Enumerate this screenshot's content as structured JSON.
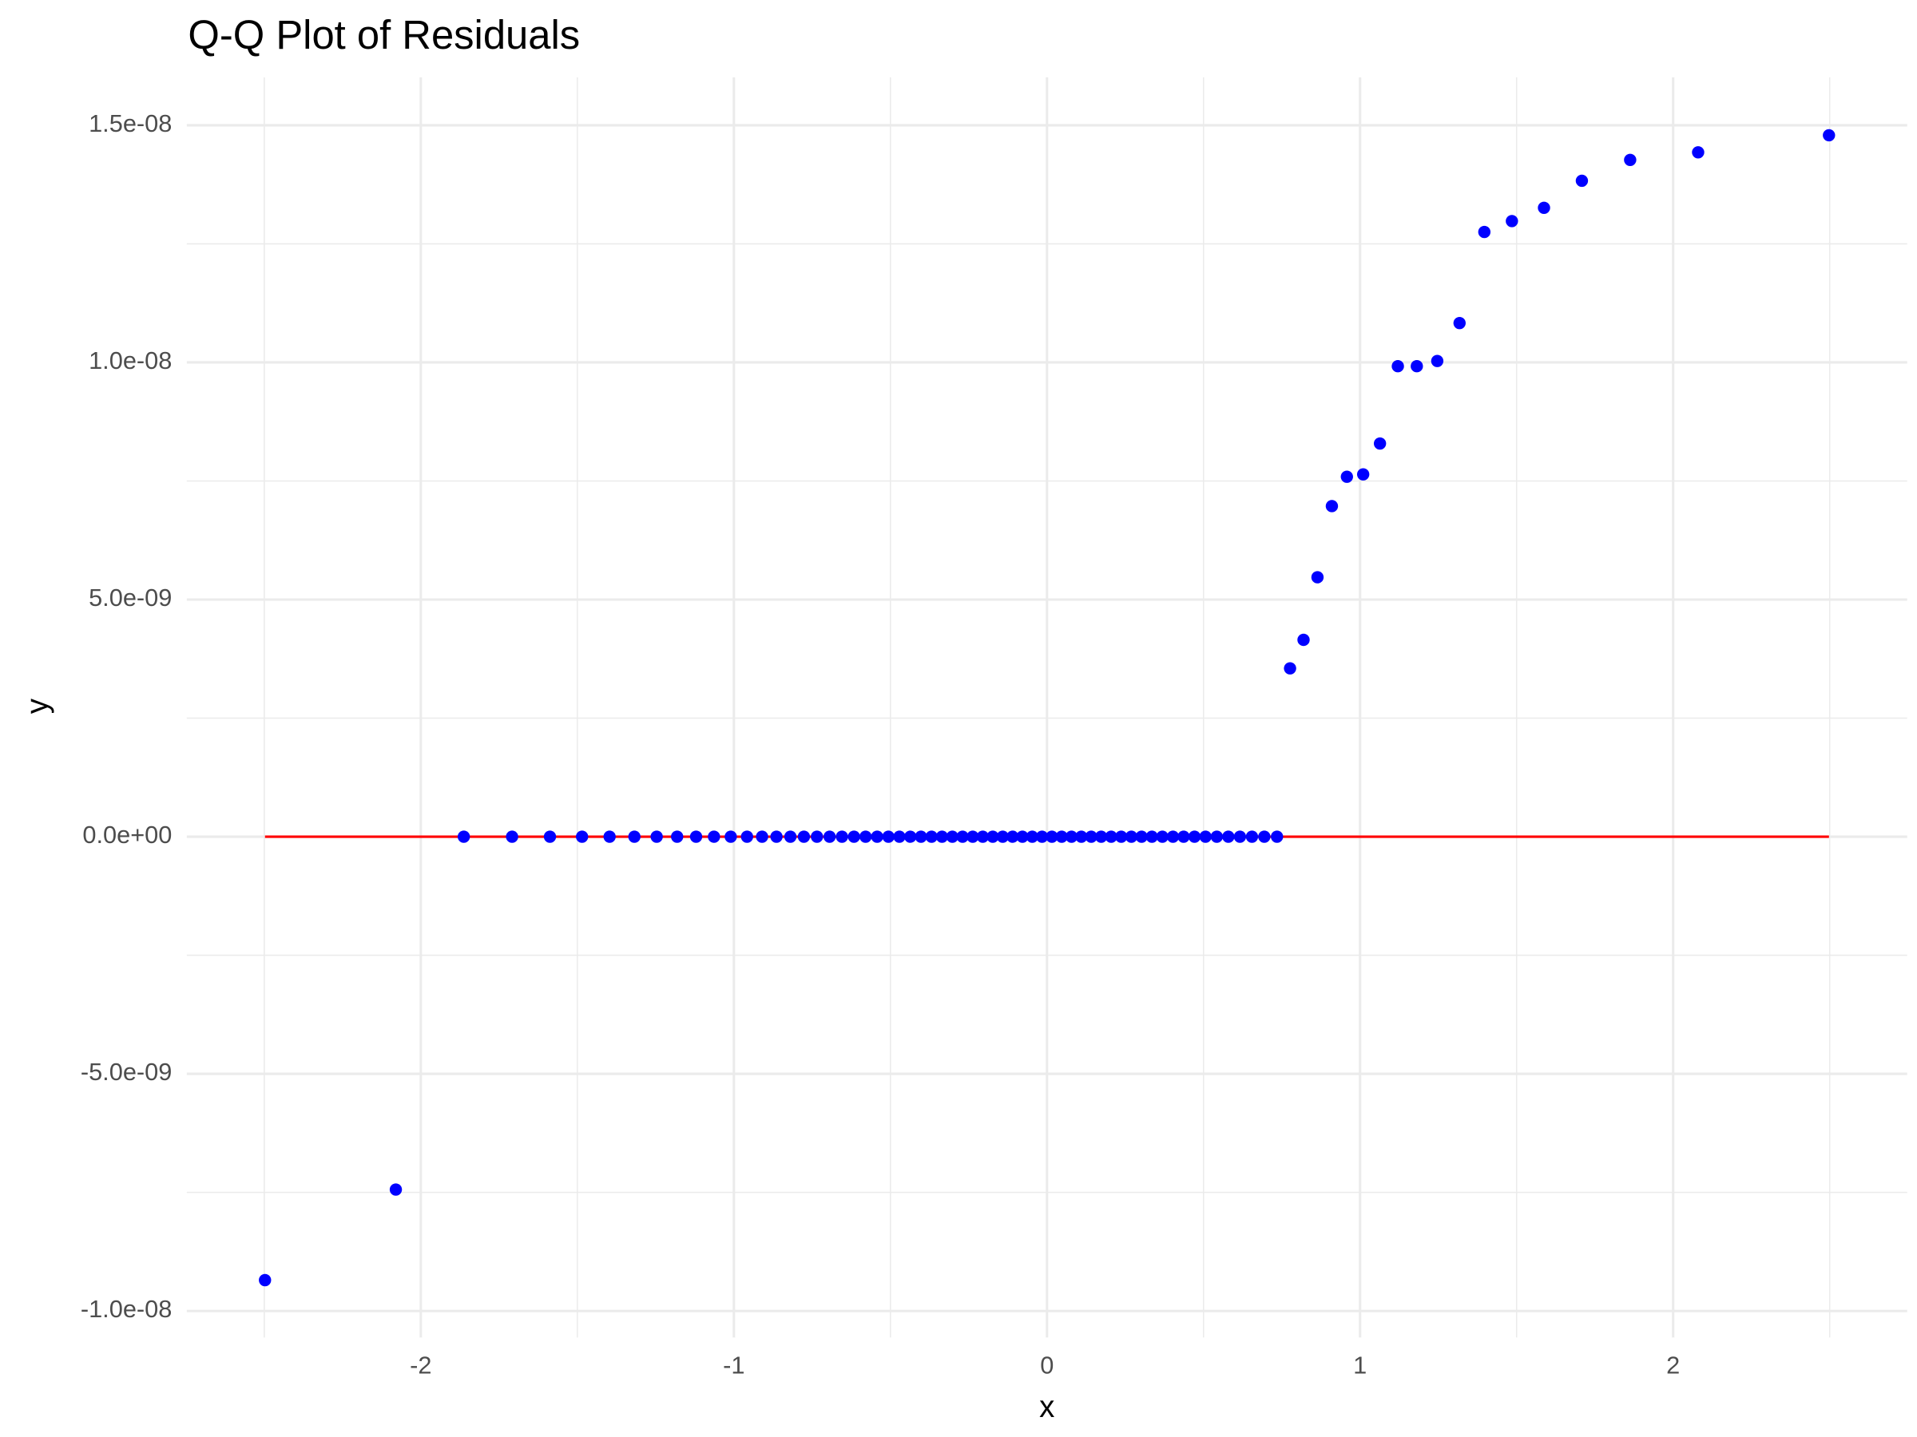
{
  "chart_data": {
    "type": "scatter",
    "title": "Q-Q Plot of Residuals",
    "x_label": "x",
    "y_label": "y",
    "x": [
      -2.4977,
      -2.0798,
      -1.8627,
      -1.7085,
      -1.5875,
      -1.485,
      -1.397,
      -1.3178,
      -1.2466,
      -1.1813,
      -1.1207,
      -1.0636,
      -1.01,
      -0.958,
      -0.91,
      -0.864,
      -0.8195,
      -0.7764,
      -0.7347,
      -0.6942,
      -0.6548,
      -0.6164,
      -0.5793,
      -0.5424,
      -0.5064,
      -0.4713,
      -0.4365,
      -0.4024,
      -0.3686,
      -0.3352,
      -0.3022,
      -0.2696,
      -0.2372,
      -0.2051,
      -0.1732,
      -0.1414,
      -0.1098,
      -0.0784,
      -0.047,
      -0.0157,
      0.0157,
      0.047,
      0.0784,
      0.1098,
      0.1414,
      0.1732,
      0.2051,
      0.2372,
      0.2696,
      0.3022,
      0.3352,
      0.3686,
      0.4024,
      0.4365,
      0.4713,
      0.5064,
      0.5424,
      0.5793,
      0.6164,
      0.6548,
      0.6942,
      0.7347,
      0.7764,
      0.8195,
      0.864,
      0.91,
      0.958,
      1.01,
      1.0636,
      1.1207,
      1.1813,
      1.2466,
      1.3178,
      1.397,
      1.485,
      1.5875,
      1.7085,
      1.8627,
      2.0798,
      2.4977
    ],
    "values": [
      -9.35e-09,
      -7.44e-09,
      0,
      0,
      0,
      0,
      0,
      0,
      0,
      0,
      0,
      0,
      0,
      0,
      0,
      0,
      0,
      0,
      0,
      0,
      0,
      0,
      0,
      0,
      0,
      0,
      0,
      0,
      0,
      0,
      0,
      0,
      0,
      0,
      0,
      0,
      0,
      0,
      0,
      0,
      0,
      0,
      0,
      0,
      0,
      0,
      0,
      0,
      0,
      0,
      0,
      0,
      0,
      0,
      0,
      0,
      0,
      0,
      0,
      0,
      0,
      0,
      3.55e-09,
      4.15e-09,
      5.47e-09,
      6.97e-09,
      7.59e-09,
      7.64e-09,
      8.29e-09,
      9.92e-09,
      9.92e-09,
      1.003e-08,
      1.083e-08,
      1.275e-08,
      1.298e-08,
      1.326e-08,
      1.383e-08,
      1.427e-08,
      1.443e-08,
      1.479e-08
    ],
    "color": "#0000ff",
    "reference_line": {
      "y": 0,
      "color": "#ff0000"
    },
    "xlim": [
      -2.7475,
      2.7475
    ],
    "ylim": [
      -1.056e-08,
      1.601e-08
    ],
    "xticks": [
      -2,
      -1,
      0,
      1,
      2
    ],
    "yticks": [
      {
        "value": -1e-08,
        "label": "-1.0e-08"
      },
      {
        "value": -5e-09,
        "label": "-5.0e-09"
      },
      {
        "value": 0,
        "label": "0.0e+00"
      },
      {
        "value": 5e-09,
        "label": "5.0e-09"
      },
      {
        "value": 1e-08,
        "label": "1.0e-08"
      },
      {
        "value": 1.5e-08,
        "label": "1.5e-08"
      }
    ],
    "grid": true
  }
}
